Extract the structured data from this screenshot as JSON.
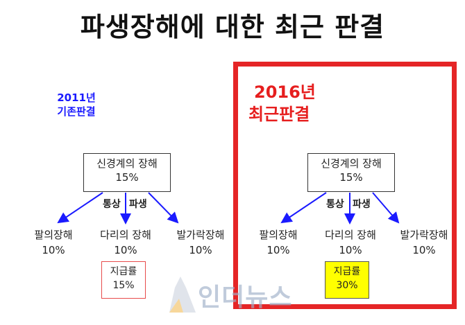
{
  "title": "파생장해에 대한 최근 판결",
  "left": {
    "year": "2011년",
    "caption": "기존판결",
    "root": {
      "line1": "신경계의 장해",
      "line2": "15%"
    },
    "mid_left": "통상",
    "mid_right": "파생",
    "leaves": [
      {
        "name": "팔의장해",
        "value": "10%"
      },
      {
        "name": "다리의 장해",
        "value": "10%"
      },
      {
        "name": "발가락장해",
        "value": "10%"
      }
    ],
    "rate": {
      "label": "지급률",
      "value": "15%"
    }
  },
  "right": {
    "year": "2016년",
    "caption": "최근판결",
    "root": {
      "line1": "신경계의 장해",
      "line2": "15%"
    },
    "mid_left": "통상",
    "mid_right": "파생",
    "leaves": [
      {
        "name": "팔의장해",
        "value": "10%"
      },
      {
        "name": "다리의 장해",
        "value": "10%"
      },
      {
        "name": "발가락장해",
        "value": "10%"
      }
    ],
    "rate": {
      "label": "지급률",
      "value": "30%"
    }
  },
  "watermark": "인더뉴스",
  "colors": {
    "accent_red": "#e52526",
    "accent_blue": "#1a1aff",
    "highlight": "#ffff00"
  }
}
